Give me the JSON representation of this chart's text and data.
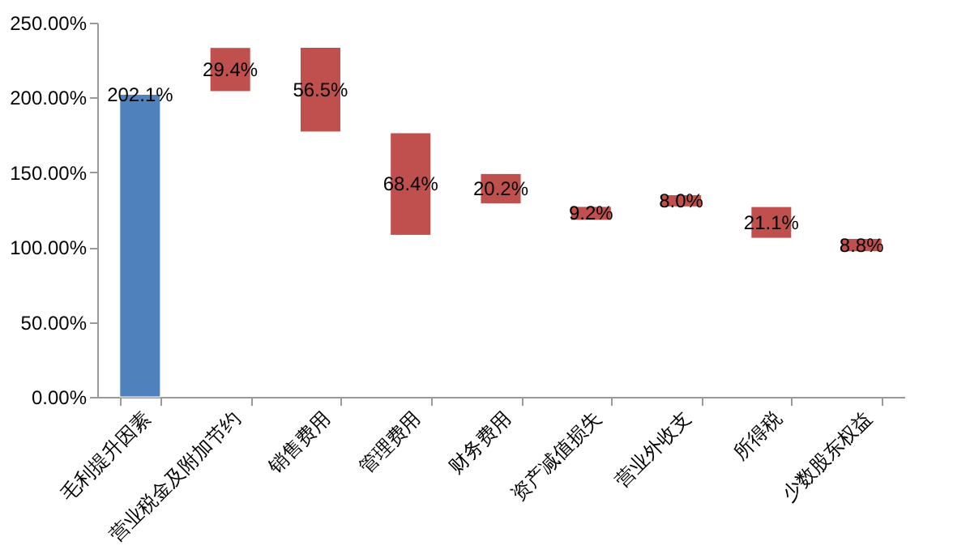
{
  "chart_data": {
    "type": "bar",
    "categories": [
      "毛利提升因素",
      "营业税金及附加节约",
      "销售费用",
      "管理费用",
      "财务费用",
      "资产减值损失",
      "营业外收支",
      "所得税",
      "少数股东权益"
    ],
    "values": [
      202.1,
      29.4,
      56.5,
      68.4,
      20.2,
      9.2,
      8.0,
      21.1,
      8.8
    ],
    "base": [
      0,
      204,
      177,
      108,
      129,
      118,
      127,
      106,
      97
    ],
    "colors": [
      "#4f81bd",
      "#c0504d",
      "#c0504d",
      "#c0504d",
      "#c0504d",
      "#c0504d",
      "#c0504d",
      "#c0504d",
      "#c0504d"
    ],
    "value_labels": [
      "202.1%",
      "29.4%",
      "56.5%",
      "68.4%",
      "20.2%",
      "9.2%",
      "8.0%",
      "21.1%",
      "8.8%"
    ],
    "ylim": [
      0,
      250
    ],
    "yticks": [
      {
        "value": 0,
        "label": "0.00%"
      },
      {
        "value": 50,
        "label": "50.00%"
      },
      {
        "value": 100,
        "label": "100.00%"
      },
      {
        "value": 150,
        "label": "150.00%"
      },
      {
        "value": 200,
        "label": "200.00%"
      },
      {
        "value": 250,
        "label": "250.00%"
      }
    ],
    "grid": false
  }
}
